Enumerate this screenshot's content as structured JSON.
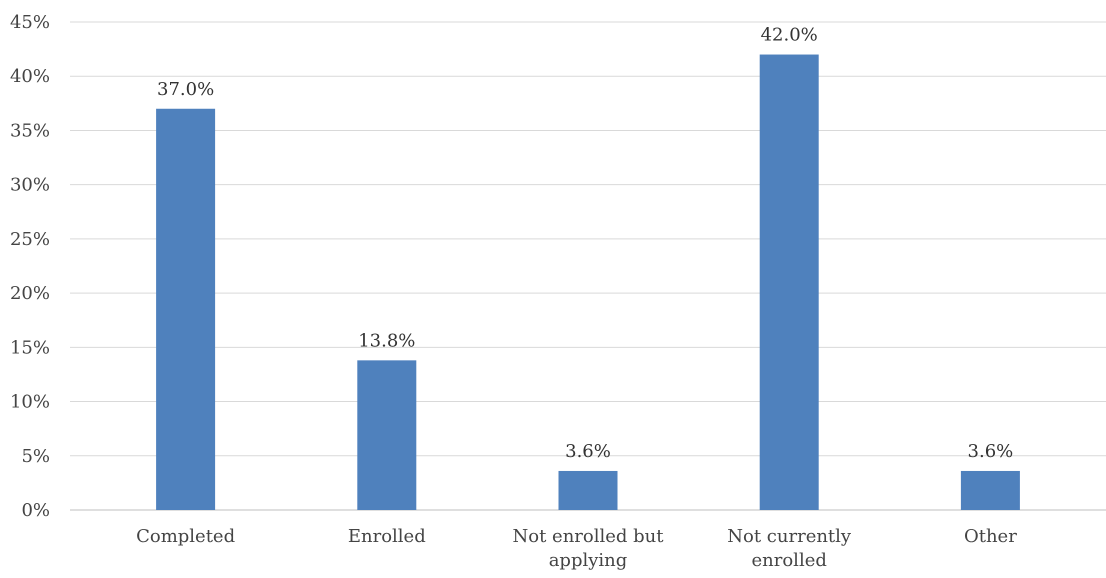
{
  "chart_data": {
    "type": "bar",
    "title": "",
    "xlabel": "",
    "ylabel": "",
    "categories": [
      [
        "Completed"
      ],
      [
        "Enrolled"
      ],
      [
        "Not enrolled but",
        "applying"
      ],
      [
        "Not currently",
        "enrolled"
      ],
      [
        "Other"
      ]
    ],
    "values": [
      37.0,
      13.8,
      3.6,
      42.0,
      3.6
    ],
    "data_labels": [
      "37.0%",
      "13.8%",
      "3.6%",
      "42.0%",
      "3.6%"
    ],
    "ylim": [
      0,
      45
    ],
    "yticks": [
      0,
      5,
      10,
      15,
      20,
      25,
      30,
      35,
      40,
      45
    ],
    "ytick_labels": [
      "0%",
      "5%",
      "10%",
      "15%",
      "20%",
      "25%",
      "30%",
      "35%",
      "40%",
      "45%"
    ],
    "grid": true,
    "legend": "none",
    "bar_color": "#4f81bd"
  }
}
